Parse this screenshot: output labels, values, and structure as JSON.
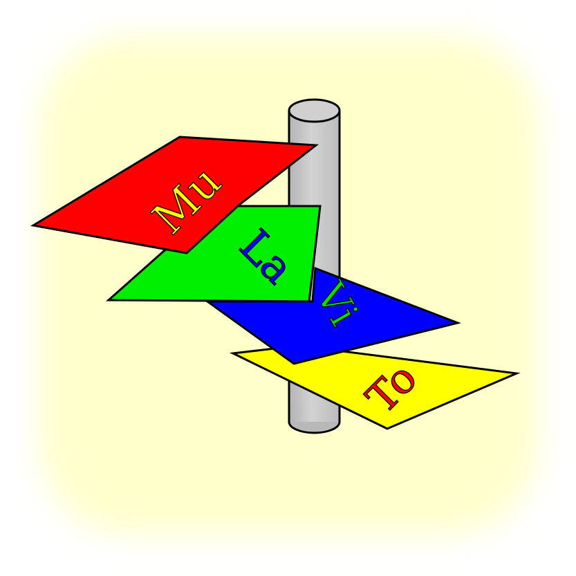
{
  "icon": {
    "background_color": "#ffffcc",
    "pole_color": "#c8c8c8",
    "signs": [
      {
        "label": "Mu",
        "fill": "#ff0000",
        "text_color": "#ffff00"
      },
      {
        "label": "La",
        "fill": "#00ee00",
        "text_color": "#0000ff"
      },
      {
        "label": "Vi",
        "fill": "#0000ff",
        "text_color": "#00dd00"
      },
      {
        "label": "To",
        "fill": "#ffff00",
        "text_color": "#ff0000"
      }
    ]
  }
}
